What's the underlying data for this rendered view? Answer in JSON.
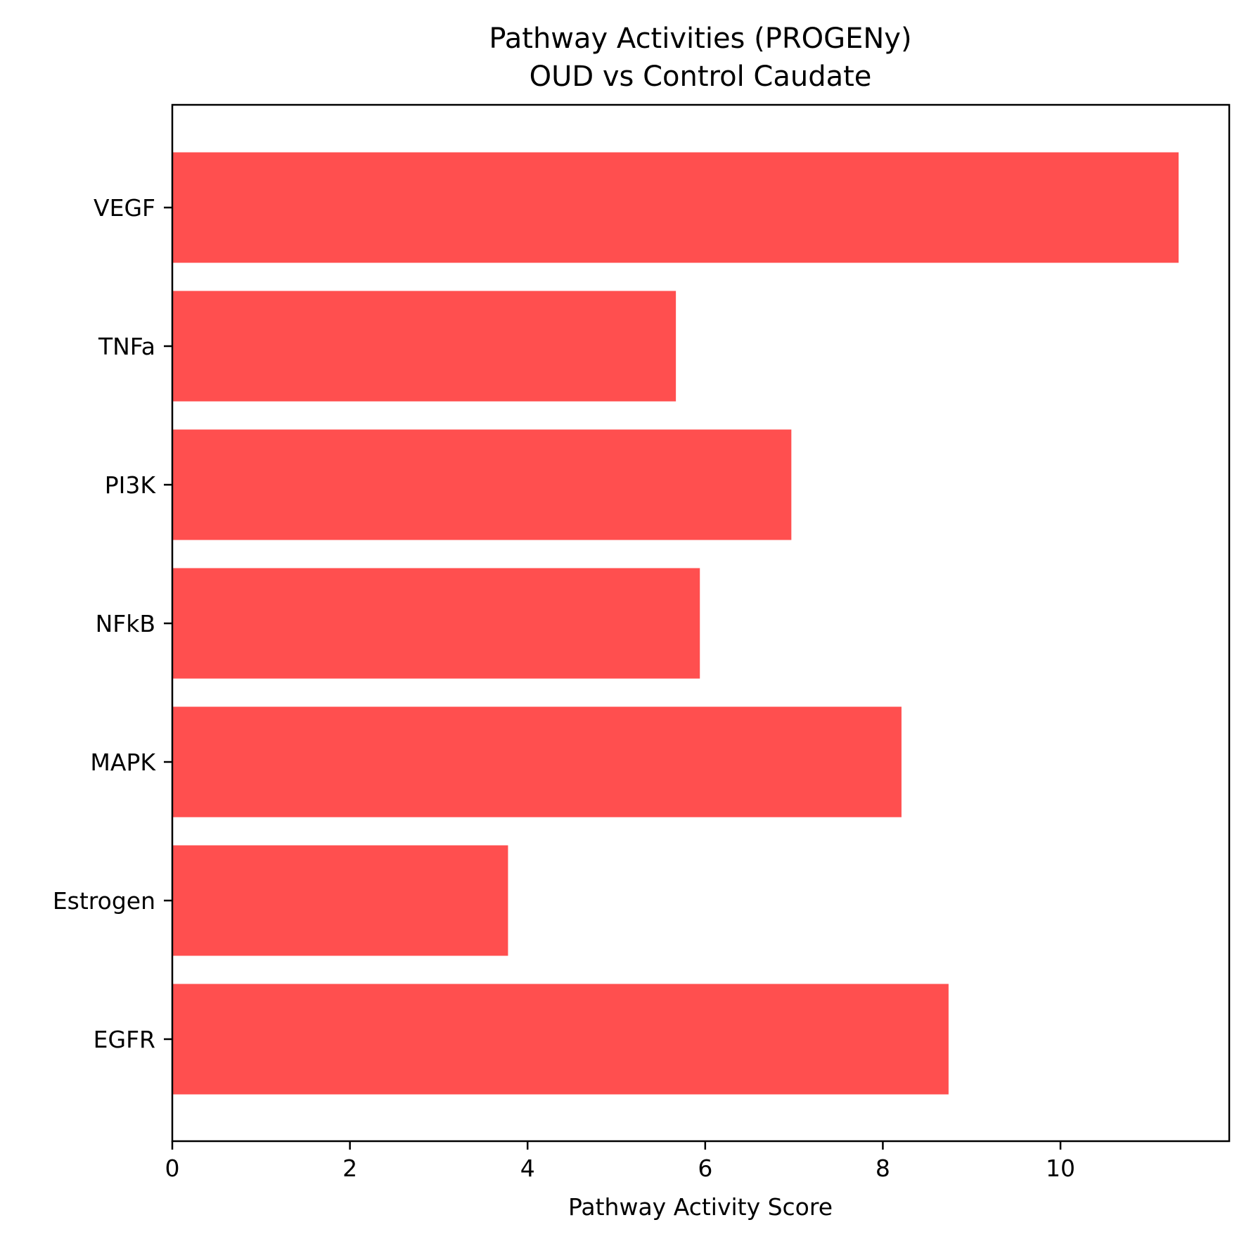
{
  "chart_data": {
    "type": "bar",
    "orientation": "horizontal",
    "title_lines": [
      "Pathway Activities (PROGENy)",
      "OUD vs Control Caudate"
    ],
    "xlabel": "Pathway Activity Score",
    "ylabel": "",
    "categories": [
      "VEGF",
      "TNFa",
      "PI3K",
      "NFkB",
      "MAPK",
      "Estrogen",
      "EGFR"
    ],
    "values": [
      11.33,
      5.67,
      6.97,
      5.94,
      8.21,
      3.78,
      8.74
    ],
    "xlim": [
      0,
      11.9
    ],
    "xticks": [
      0,
      2,
      4,
      6,
      8,
      10
    ],
    "xtick_labels": [
      "0",
      "2",
      "4",
      "6",
      "8",
      "10"
    ],
    "bar_color": "#ff4f4f",
    "grid": false,
    "legend": "none"
  }
}
